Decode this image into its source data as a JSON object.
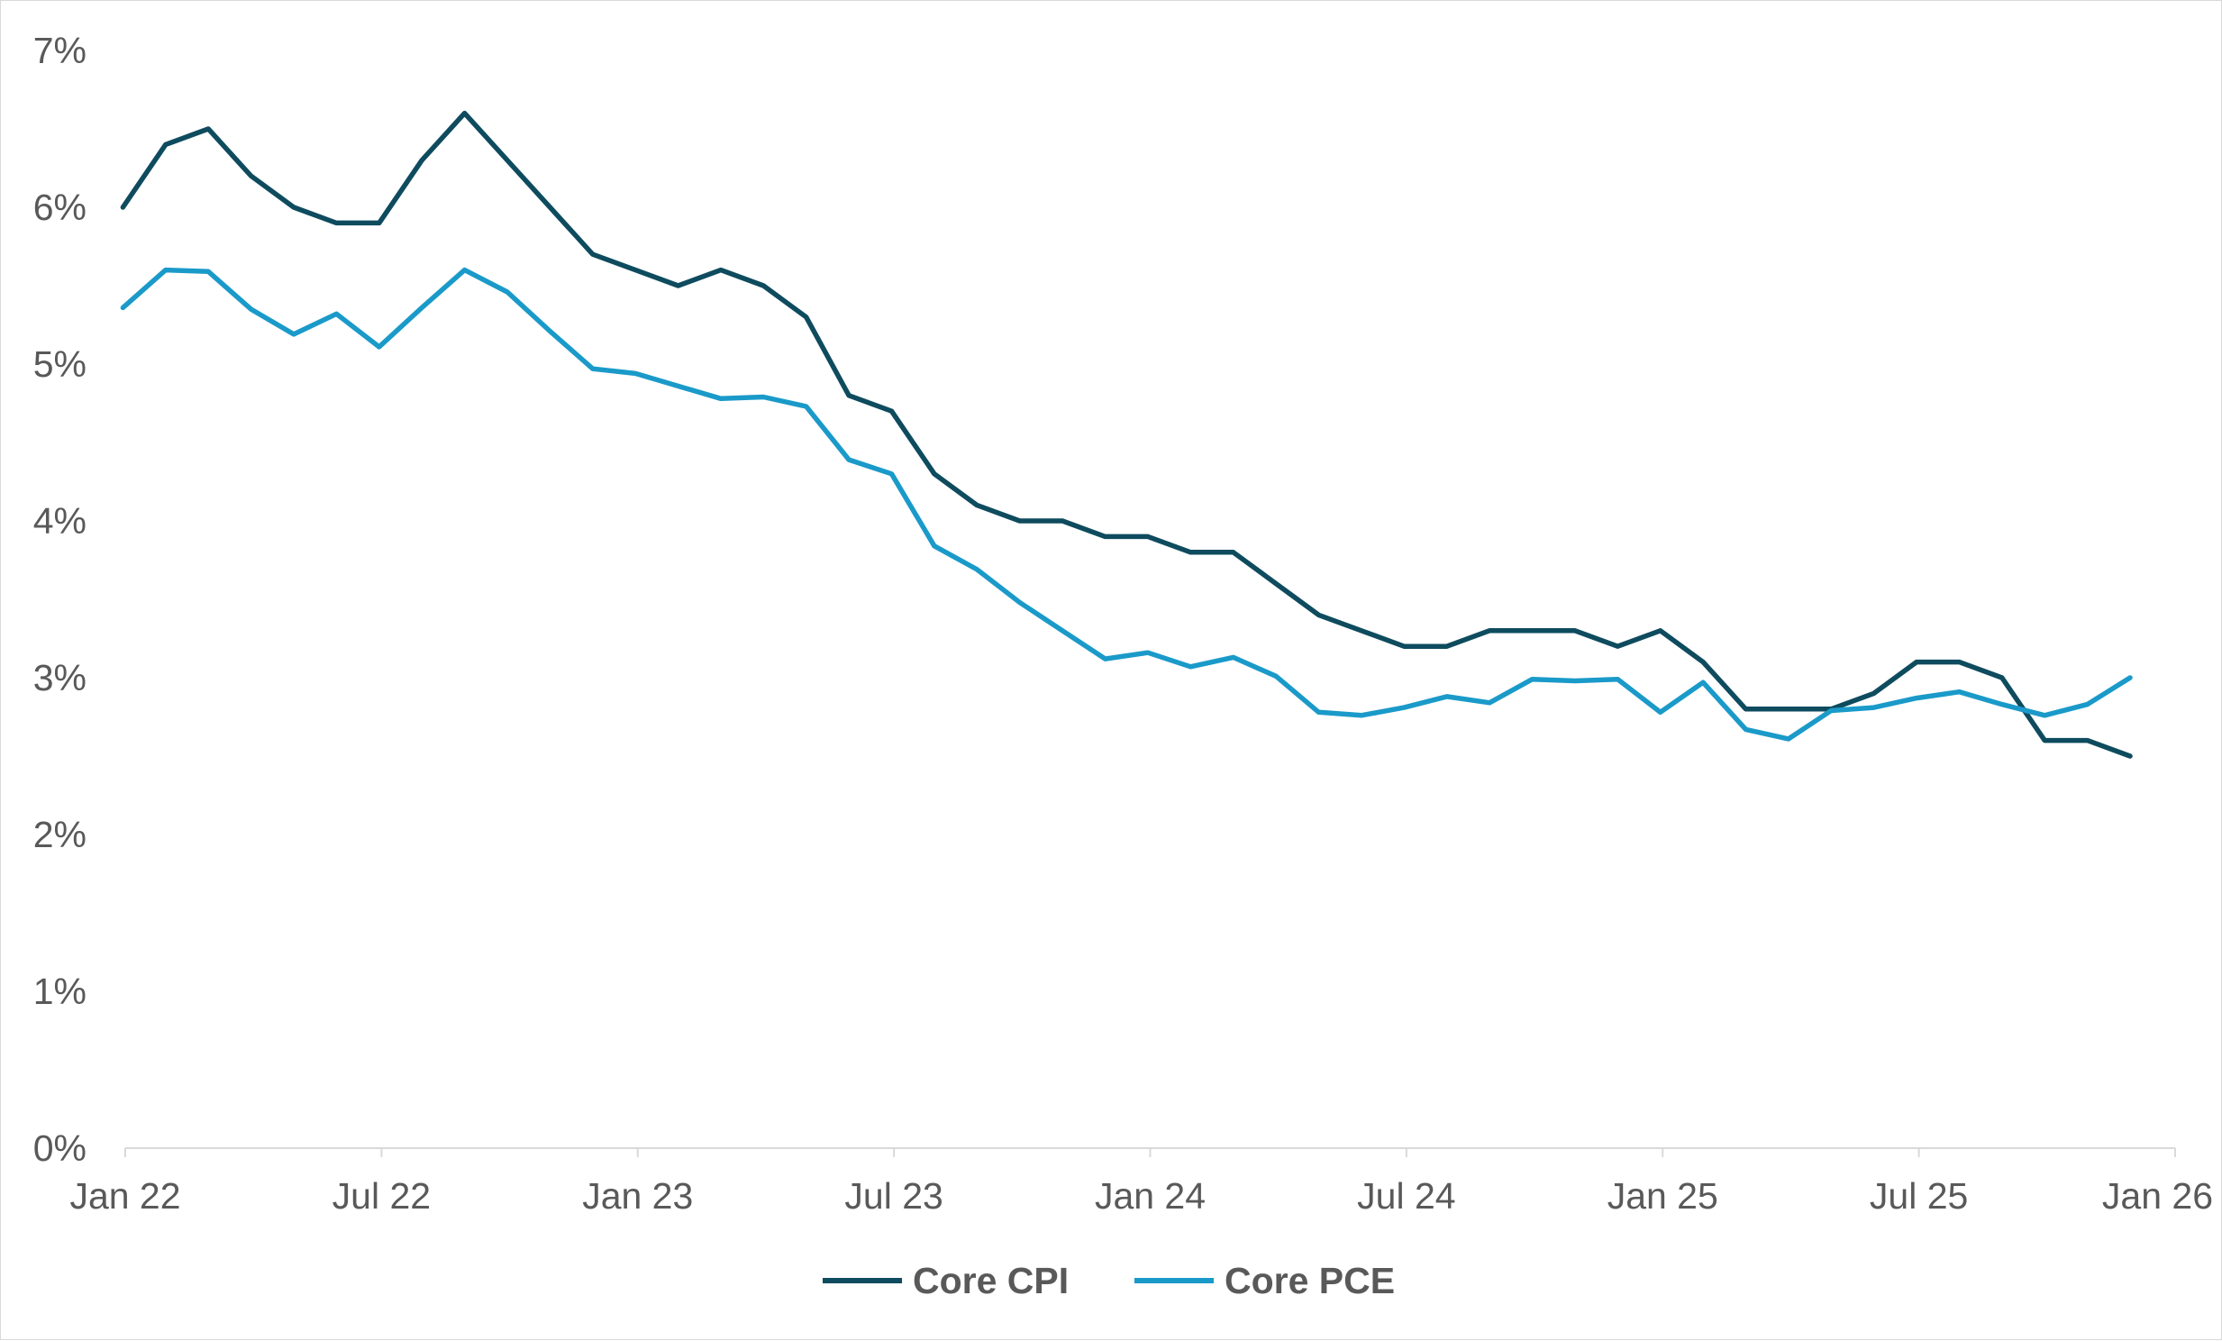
{
  "chart_data": {
    "type": "line",
    "title": "",
    "xlabel": "",
    "ylabel": "",
    "ylim": [
      0,
      7
    ],
    "y_ticks": [
      "0%",
      "1%",
      "2%",
      "3%",
      "4%",
      "5%",
      "6%",
      "7%"
    ],
    "y_tick_values": [
      0,
      1,
      2,
      3,
      4,
      5,
      6,
      7
    ],
    "x_ticks": [
      "Jan 22",
      "Jul 22",
      "Jan 23",
      "Jul 23",
      "Jan 24",
      "Jul 24",
      "Jan 25",
      "Jul 25",
      "Jan 26"
    ],
    "x_start": "Jan 22",
    "x_end": "Jan 26",
    "x": [
      "Jan 22",
      "Feb 22",
      "Mar 22",
      "Apr 22",
      "May 22",
      "Jun 22",
      "Jul 22",
      "Aug 22",
      "Sep 22",
      "Oct 22",
      "Nov 22",
      "Dec 22",
      "Jan 23",
      "Feb 23",
      "Mar 23",
      "Apr 23",
      "May 23",
      "Jun 23",
      "Jul 23",
      "Aug 23",
      "Sep 23",
      "Oct 23",
      "Nov 23",
      "Dec 23",
      "Jan 24",
      "Feb 24",
      "Mar 24",
      "Apr 24",
      "May 24",
      "Jun 24",
      "Jul 24",
      "Aug 24",
      "Sep 24",
      "Oct 24",
      "Nov 24",
      "Dec 24",
      "Jan 25",
      "Feb 25",
      "Mar 25",
      "Apr 25",
      "May 25",
      "Jun 25",
      "Jul 25",
      "Aug 25",
      "Sep 25",
      "Oct 25",
      "Nov 25",
      "Dec 25"
    ],
    "grid": false,
    "legend_position": "bottom-center",
    "series": [
      {
        "name": "Core CPI",
        "color": "#0e4b5e",
        "values": [
          6.0,
          6.4,
          6.5,
          6.2,
          6.0,
          5.9,
          5.9,
          6.3,
          6.6,
          6.3,
          6.0,
          5.7,
          5.6,
          5.5,
          5.6,
          5.5,
          5.3,
          4.8,
          4.7,
          4.3,
          4.1,
          4.0,
          4.0,
          3.9,
          3.9,
          3.8,
          3.8,
          3.6,
          3.4,
          3.3,
          3.2,
          3.2,
          3.3,
          3.3,
          3.3,
          3.2,
          3.3,
          3.1,
          2.8,
          2.8,
          2.8,
          2.9,
          3.1,
          3.1,
          3.0,
          2.6,
          2.6,
          2.5
        ]
      },
      {
        "name": "Core PCE",
        "color": "#1a9ac9",
        "values": [
          5.36,
          5.6,
          5.59,
          5.35,
          5.19,
          5.32,
          5.11,
          5.36,
          5.6,
          5.46,
          5.21,
          4.97,
          4.94,
          4.86,
          4.78,
          4.79,
          4.73,
          4.39,
          4.3,
          3.84,
          3.69,
          3.48,
          3.3,
          3.12,
          3.16,
          3.07,
          3.13,
          3.01,
          2.78,
          2.76,
          2.81,
          2.88,
          2.84,
          2.99,
          2.98,
          2.99,
          2.78,
          2.97,
          2.67,
          2.61,
          2.79,
          2.81,
          2.87,
          2.91,
          2.83,
          2.76,
          2.83,
          3.0
        ]
      }
    ]
  }
}
